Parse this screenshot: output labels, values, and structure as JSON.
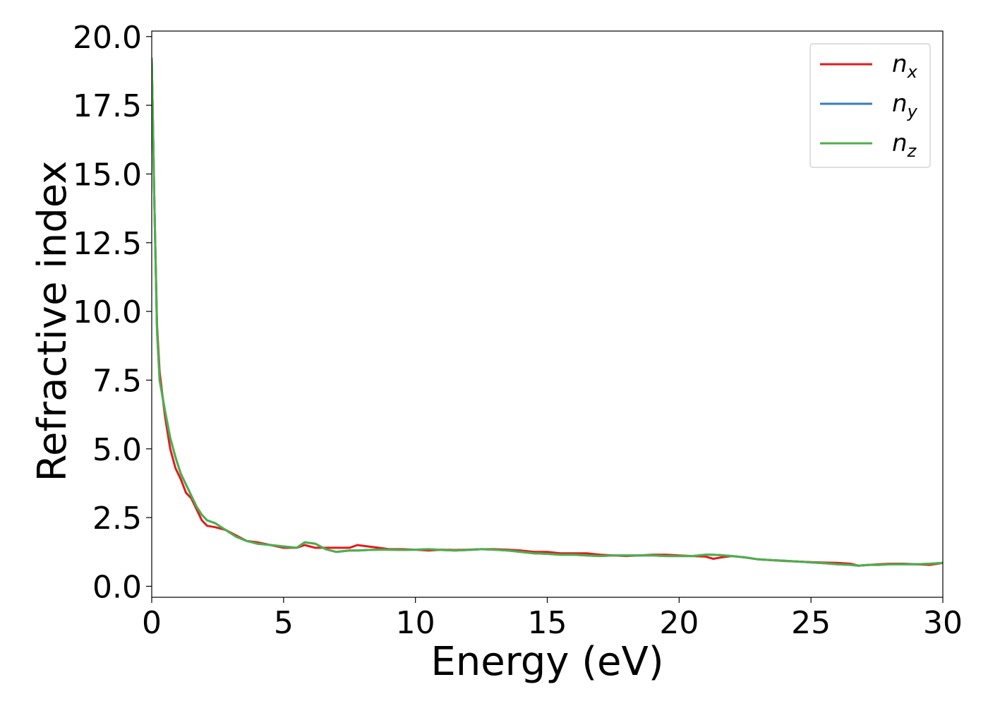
{
  "chart_data": {
    "type": "line",
    "xlabel": "Energy (eV)",
    "ylabel": "Refractive index",
    "xlim": [
      0,
      30
    ],
    "ylim": [
      -0.4,
      20.2
    ],
    "xticks": [
      0,
      5,
      10,
      15,
      20,
      25,
      30
    ],
    "xtick_labels": [
      "0",
      "5",
      "10",
      "15",
      "20",
      "25",
      "30"
    ],
    "yticks": [
      0,
      2.5,
      5,
      7.5,
      10,
      12.5,
      15,
      17.5,
      20
    ],
    "ytick_labels": [
      "0.0",
      "2.5",
      "5.0",
      "7.5",
      "10.0",
      "12.5",
      "15.0",
      "17.5",
      "20.0"
    ],
    "grid": false,
    "legend_position": "top-right",
    "series": [
      {
        "name": "n",
        "subscript": "x",
        "color": "#e41a1c",
        "x": [
          0,
          0.1,
          0.2,
          0.3,
          0.5,
          0.7,
          0.9,
          1.1,
          1.3,
          1.5,
          1.7,
          1.9,
          2.1,
          2.4,
          2.8,
          3.2,
          3.6,
          4.0,
          4.5,
          5.0,
          5.5,
          5.8,
          6.2,
          6.6,
          7.0,
          7.5,
          7.8,
          8.2,
          8.6,
          9.0,
          9.5,
          10,
          10.5,
          11,
          11.5,
          12,
          12.5,
          13,
          13.5,
          14,
          14.5,
          15,
          15.5,
          16,
          16.5,
          17,
          17.5,
          18,
          18.5,
          19,
          19.5,
          20,
          20.5,
          21,
          21.3,
          21.6,
          22,
          22.5,
          23,
          23.5,
          24,
          24.5,
          25,
          25.5,
          26,
          26.5,
          26.8,
          27.2,
          27.6,
          28,
          28.5,
          29,
          29.5,
          30
        ],
        "y": [
          19.2,
          14.0,
          9.5,
          7.8,
          6.2,
          5.0,
          4.3,
          3.9,
          3.4,
          3.2,
          2.8,
          2.4,
          2.2,
          2.15,
          2.05,
          1.85,
          1.65,
          1.6,
          1.5,
          1.4,
          1.4,
          1.5,
          1.4,
          1.4,
          1.4,
          1.4,
          1.5,
          1.45,
          1.4,
          1.35,
          1.35,
          1.33,
          1.3,
          1.33,
          1.32,
          1.33,
          1.35,
          1.35,
          1.33,
          1.3,
          1.25,
          1.25,
          1.2,
          1.2,
          1.2,
          1.15,
          1.12,
          1.1,
          1.12,
          1.15,
          1.15,
          1.12,
          1.1,
          1.08,
          1.0,
          1.05,
          1.1,
          1.05,
          0.98,
          0.95,
          0.92,
          0.9,
          0.88,
          0.86,
          0.85,
          0.82,
          0.75,
          0.78,
          0.8,
          0.82,
          0.82,
          0.8,
          0.78,
          0.85
        ]
      },
      {
        "name": "n",
        "subscript": "y",
        "color": "#377eb8",
        "x": [
          0,
          0.1,
          0.2,
          0.3,
          0.5,
          0.7,
          0.9,
          1.1,
          1.3,
          1.5,
          1.7,
          1.9,
          2.1,
          2.4,
          2.8,
          3.2,
          3.6,
          4.0,
          4.5,
          5.0,
          5.5,
          5.8,
          6.2,
          6.6,
          7.0,
          7.5,
          7.8,
          8.2,
          8.6,
          9.0,
          9.5,
          10,
          10.5,
          11,
          11.5,
          12,
          12.5,
          13,
          13.5,
          14,
          14.5,
          15,
          15.5,
          16,
          16.5,
          17,
          17.5,
          18,
          18.5,
          19,
          19.5,
          20,
          20.5,
          21,
          21.3,
          21.6,
          22,
          22.5,
          23,
          23.5,
          24,
          24.5,
          25,
          25.5,
          26,
          26.5,
          26.8,
          27.2,
          27.6,
          28,
          28.5,
          29,
          29.5,
          30
        ],
        "y": [
          19.2,
          14.0,
          9.3,
          7.5,
          6.4,
          5.4,
          4.7,
          4.1,
          3.7,
          3.3,
          2.9,
          2.6,
          2.4,
          2.3,
          2.05,
          1.8,
          1.65,
          1.55,
          1.5,
          1.45,
          1.4,
          1.6,
          1.55,
          1.35,
          1.25,
          1.3,
          1.3,
          1.32,
          1.33,
          1.33,
          1.32,
          1.33,
          1.35,
          1.32,
          1.3,
          1.32,
          1.35,
          1.33,
          1.3,
          1.25,
          1.2,
          1.18,
          1.15,
          1.15,
          1.12,
          1.1,
          1.12,
          1.12,
          1.12,
          1.12,
          1.1,
          1.1,
          1.1,
          1.15,
          1.15,
          1.13,
          1.1,
          1.05,
          0.98,
          0.95,
          0.93,
          0.9,
          0.87,
          0.84,
          0.8,
          0.78,
          0.75,
          0.78,
          0.78,
          0.8,
          0.8,
          0.8,
          0.82,
          0.85
        ]
      },
      {
        "name": "n",
        "subscript": "z",
        "color": "#4daf4a",
        "x": [
          0,
          0.1,
          0.2,
          0.3,
          0.5,
          0.7,
          0.9,
          1.1,
          1.3,
          1.5,
          1.7,
          1.9,
          2.1,
          2.4,
          2.8,
          3.2,
          3.6,
          4.0,
          4.5,
          5.0,
          5.5,
          5.8,
          6.2,
          6.6,
          7.0,
          7.5,
          7.8,
          8.2,
          8.6,
          9.0,
          9.5,
          10,
          10.5,
          11,
          11.5,
          12,
          12.5,
          13,
          13.5,
          14,
          14.5,
          15,
          15.5,
          16,
          16.5,
          17,
          17.5,
          18,
          18.5,
          19,
          19.5,
          20,
          20.5,
          21,
          21.3,
          21.6,
          22,
          22.5,
          23,
          23.5,
          24,
          24.5,
          25,
          25.5,
          26,
          26.5,
          26.8,
          27.2,
          27.6,
          28,
          28.5,
          29,
          29.5,
          30
        ],
        "y": [
          19.2,
          14.0,
          9.3,
          7.5,
          6.4,
          5.4,
          4.7,
          4.1,
          3.7,
          3.3,
          2.9,
          2.6,
          2.4,
          2.3,
          2.05,
          1.8,
          1.65,
          1.55,
          1.5,
          1.45,
          1.4,
          1.6,
          1.55,
          1.35,
          1.25,
          1.3,
          1.3,
          1.32,
          1.33,
          1.33,
          1.32,
          1.33,
          1.35,
          1.32,
          1.3,
          1.32,
          1.35,
          1.33,
          1.3,
          1.25,
          1.2,
          1.18,
          1.15,
          1.15,
          1.12,
          1.1,
          1.12,
          1.12,
          1.12,
          1.12,
          1.1,
          1.1,
          1.1,
          1.15,
          1.15,
          1.13,
          1.1,
          1.05,
          0.98,
          0.95,
          0.93,
          0.9,
          0.87,
          0.84,
          0.8,
          0.78,
          0.75,
          0.78,
          0.78,
          0.8,
          0.8,
          0.8,
          0.82,
          0.85
        ]
      }
    ]
  }
}
